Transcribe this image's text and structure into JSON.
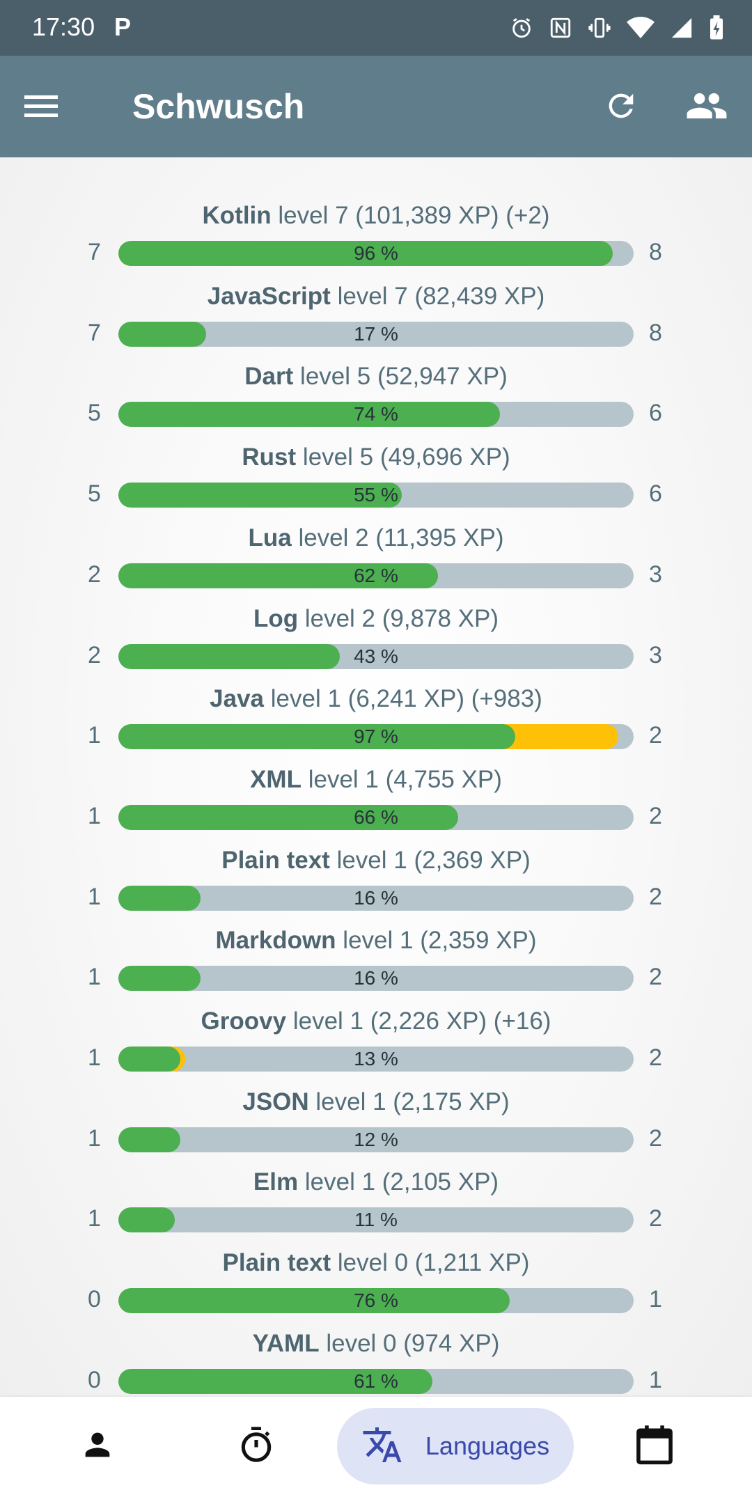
{
  "status_bar": {
    "time": "17:30",
    "notification_letter": "P",
    "icons": [
      "alarm-icon",
      "nfc-icon",
      "vibrate-icon",
      "wifi-icon",
      "cellular-signal-icon",
      "battery-charging-icon"
    ]
  },
  "app_bar": {
    "title": "Schwusch",
    "icons": [
      "menu-icon",
      "refresh-icon",
      "people-icon"
    ],
    "color": "#607d8b"
  },
  "colors": {
    "progress": "#4caf50",
    "gain": "#ffc107",
    "track": "#b6c5cb",
    "active_nav": "#dfe3f6"
  },
  "languages": [
    {
      "name": "Kotlin",
      "info": "level 7 (101,389 XP) (+2)",
      "level": "7",
      "next_level": "8",
      "percent_label": "96 %",
      "progress": 0.96,
      "gain_progress": 0.96
    },
    {
      "name": "JavaScript",
      "info": "level 7 (82,439 XP)",
      "level": "7",
      "next_level": "8",
      "percent_label": "17 %",
      "progress": 0.17,
      "gain_progress": 0
    },
    {
      "name": "Dart",
      "info": "level 5 (52,947 XP)",
      "level": "5",
      "next_level": "6",
      "percent_label": "74 %",
      "progress": 0.74,
      "gain_progress": 0
    },
    {
      "name": "Rust",
      "info": "level 5 (49,696 XP)",
      "level": "5",
      "next_level": "6",
      "percent_label": "55 %",
      "progress": 0.55,
      "gain_progress": 0
    },
    {
      "name": "Lua",
      "info": "level 2 (11,395 XP)",
      "level": "2",
      "next_level": "3",
      "percent_label": "62 %",
      "progress": 0.62,
      "gain_progress": 0
    },
    {
      "name": "Log",
      "info": "level 2 (9,878 XP)",
      "level": "2",
      "next_level": "3",
      "percent_label": "43 %",
      "progress": 0.43,
      "gain_progress": 0
    },
    {
      "name": "Java",
      "info": "level 1 (6,241 XP) (+983)",
      "level": "1",
      "next_level": "2",
      "percent_label": "97 %",
      "progress": 0.77,
      "gain_progress": 0.97
    },
    {
      "name": "XML",
      "info": "level 1 (4,755 XP)",
      "level": "1",
      "next_level": "2",
      "percent_label": "66 %",
      "progress": 0.66,
      "gain_progress": 0
    },
    {
      "name": "Plain text",
      "info": "level 1 (2,369 XP)",
      "level": "1",
      "next_level": "2",
      "percent_label": "16 %",
      "progress": 0.16,
      "gain_progress": 0
    },
    {
      "name": "Markdown",
      "info": "level 1 (2,359 XP)",
      "level": "1",
      "next_level": "2",
      "percent_label": "16 %",
      "progress": 0.16,
      "gain_progress": 0
    },
    {
      "name": "Groovy",
      "info": "level 1 (2,226 XP) (+16)",
      "level": "1",
      "next_level": "2",
      "percent_label": "13 %",
      "progress": 0.12,
      "gain_progress": 0.13
    },
    {
      "name": "JSON",
      "info": "level 1 (2,175 XP)",
      "level": "1",
      "next_level": "2",
      "percent_label": "12 %",
      "progress": 0.12,
      "gain_progress": 0
    },
    {
      "name": "Elm",
      "info": "level 1 (2,105 XP)",
      "level": "1",
      "next_level": "2",
      "percent_label": "11 %",
      "progress": 0.11,
      "gain_progress": 0
    },
    {
      "name": "Plain text",
      "info": "level 0 (1,211 XP)",
      "level": "0",
      "next_level": "1",
      "percent_label": "76 %",
      "progress": 0.76,
      "gain_progress": 0
    },
    {
      "name": "YAML",
      "info": "level 0 (974 XP)",
      "level": "0",
      "next_level": "1",
      "percent_label": "61 %",
      "progress": 0.61,
      "gain_progress": 0
    }
  ],
  "bottom_nav": {
    "active_label": "Languages",
    "items": [
      "profile-icon",
      "stopwatch-icon",
      "translate-icon",
      "calendar-icon"
    ]
  }
}
